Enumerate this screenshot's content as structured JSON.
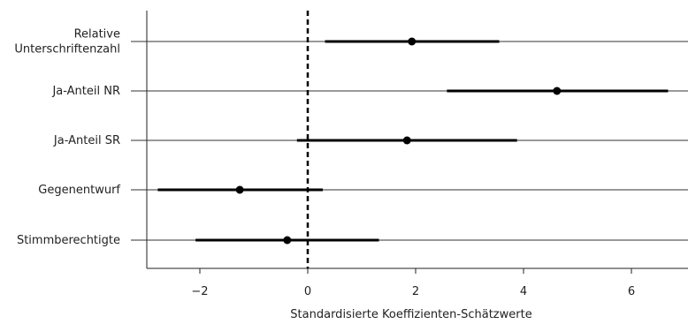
{
  "chart_data": {
    "type": "coefficient-plot",
    "title": "",
    "xlabel": "Standardisierte Koeffizienten-Schätzwerte",
    "ylabel": "",
    "xlim": [
      -3,
      7
    ],
    "xticks": [
      -2,
      0,
      2,
      4,
      6
    ],
    "xtick_labels": [
      "−2",
      "0",
      "2",
      "4",
      "6"
    ],
    "reference_line": 0,
    "reference_line_style": "dashed",
    "grid": "horizontal lines at each variable",
    "categories": [
      [
        "Relative",
        "Unterschriftenzahl"
      ],
      [
        "Ja-Anteil NR"
      ],
      [
        "Ja-Anteil SR"
      ],
      [
        "Gegenentwurf"
      ],
      [
        "Stimmberechtigte"
      ]
    ],
    "estimates": [
      1.93,
      4.62,
      1.84,
      -1.26,
      -0.38
    ],
    "ci_low": [
      0.32,
      2.58,
      -0.2,
      -2.78,
      -2.08
    ],
    "ci_high": [
      3.55,
      6.68,
      3.88,
      0.28,
      1.32
    ],
    "colors": {
      "marker": "#000000",
      "interval": "#000000",
      "gridline": "#333333",
      "axis": "#222222"
    }
  }
}
